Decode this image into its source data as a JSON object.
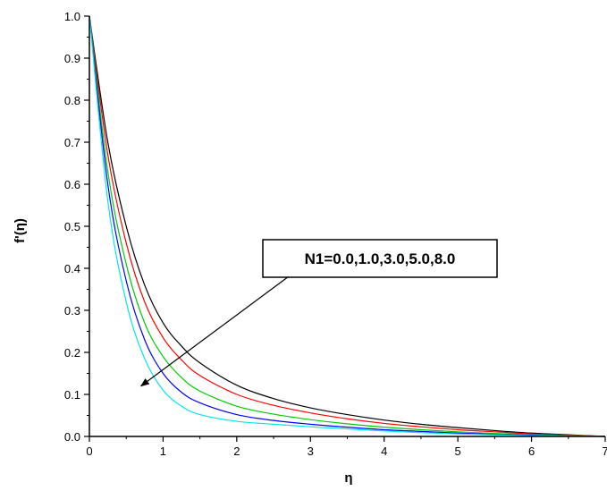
{
  "chart_data": {
    "type": "line",
    "title": "",
    "xlabel": "η",
    "ylabel": "f'(η)",
    "xlim": [
      0,
      7
    ],
    "ylim": [
      0,
      1.0
    ],
    "xticks": [
      0,
      1,
      2,
      3,
      4,
      5,
      6,
      7
    ],
    "yticks": [
      0.0,
      0.1,
      0.2,
      0.3,
      0.4,
      0.5,
      0.6,
      0.7,
      0.8,
      0.9,
      1.0
    ],
    "xtick_labels": [
      "0",
      "1",
      "2",
      "3",
      "4",
      "5",
      "6",
      "7"
    ],
    "ytick_labels": [
      "0.0",
      "0.1",
      "0.2",
      "0.3",
      "0.4",
      "0.5",
      "0.6",
      "0.7",
      "0.8",
      "0.9",
      "1.0"
    ],
    "grid": false,
    "annotation": {
      "text": "N1=0.0,1.0,3.0,5.0,8.0",
      "arrow_from": [
        2.7,
        0.38
      ],
      "arrow_to": [
        0.7,
        0.12
      ]
    },
    "series": [
      {
        "color": "#000000",
        "x": [
          0,
          0.25,
          0.5,
          0.75,
          1.0,
          1.25,
          1.5,
          2.0,
          2.5,
          3.0,
          3.5,
          4.0,
          4.5,
          5.0,
          5.5,
          6.0,
          6.5,
          7.0
        ],
        "y": [
          1.0,
          0.7,
          0.5,
          0.36,
          0.27,
          0.215,
          0.175,
          0.122,
          0.09,
          0.068,
          0.052,
          0.039,
          0.029,
          0.021,
          0.014,
          0.008,
          0.004,
          0.0
        ]
      },
      {
        "color": "#ff0000",
        "x": [
          0,
          0.25,
          0.5,
          0.75,
          1.0,
          1.25,
          1.5,
          2.0,
          2.5,
          3.0,
          3.5,
          4.0,
          4.5,
          5.0,
          5.5,
          6.0,
          6.5,
          7.0
        ],
        "y": [
          1.0,
          0.67,
          0.46,
          0.32,
          0.235,
          0.182,
          0.145,
          0.1,
          0.074,
          0.056,
          0.042,
          0.031,
          0.023,
          0.016,
          0.011,
          0.006,
          0.003,
          0.0
        ]
      },
      {
        "color": "#00cc00",
        "x": [
          0,
          0.25,
          0.5,
          0.75,
          1.0,
          1.25,
          1.5,
          2.0,
          2.5,
          3.0,
          3.5,
          4.0,
          4.5,
          5.0,
          5.5,
          6.0,
          6.5,
          7.0
        ],
        "y": [
          1.0,
          0.63,
          0.41,
          0.27,
          0.19,
          0.14,
          0.108,
          0.072,
          0.053,
          0.04,
          0.03,
          0.022,
          0.016,
          0.011,
          0.007,
          0.004,
          0.002,
          0.0
        ]
      },
      {
        "color": "#0000ff",
        "x": [
          0,
          0.25,
          0.5,
          0.75,
          1.0,
          1.25,
          1.5,
          2.0,
          2.5,
          3.0,
          3.5,
          4.0,
          4.5,
          5.0,
          5.5,
          6.0,
          6.5,
          7.0
        ],
        "y": [
          1.0,
          0.6,
          0.37,
          0.23,
          0.15,
          0.105,
          0.08,
          0.052,
          0.038,
          0.029,
          0.022,
          0.016,
          0.012,
          0.008,
          0.005,
          0.003,
          0.001,
          0.0
        ]
      },
      {
        "color": "#00e5ee",
        "x": [
          0,
          0.25,
          0.5,
          0.75,
          1.0,
          1.25,
          1.5,
          2.0,
          2.5,
          3.0,
          3.5,
          4.0,
          4.5,
          5.0,
          5.5,
          6.0,
          6.5,
          7.0
        ],
        "y": [
          1.0,
          0.56,
          0.32,
          0.185,
          0.11,
          0.072,
          0.052,
          0.036,
          0.029,
          0.023,
          0.018,
          0.013,
          0.009,
          0.006,
          0.004,
          0.002,
          0.001,
          0.0
        ]
      }
    ]
  }
}
